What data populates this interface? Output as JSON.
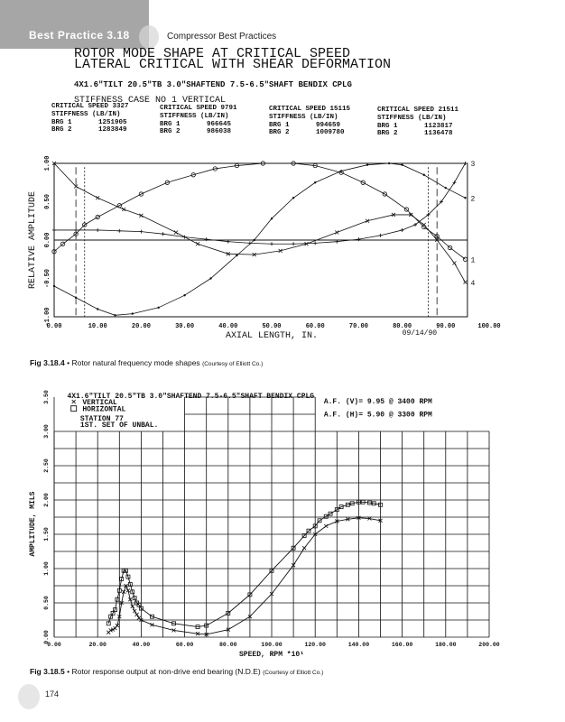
{
  "header": {
    "section": "Best Practice 3.18",
    "book": "Compressor Best Practices"
  },
  "fig1": {
    "title1": "ROTOR MODE SHAPE AT CRITICAL SPEED",
    "title2": "LATERAL CRITICAL WITH SHEAR DEFORMATION",
    "subtitle": "4X1.6\"TILT 20.5\"TB 3.0\"SHAFTEND 7.5-6.5\"SHAFT BENDIX CPLG",
    "case": "STIFFNESS CASE NO  1 VERTICAL",
    "columns": [
      {
        "speed": "CRITICAL SPEED 3327",
        "stiff": "STIFFNESS (LB/IN)",
        "b1l": "BRG 1",
        "b1": "1251905",
        "b2l": "BRG 2",
        "b2": "1283849"
      },
      {
        "speed": "CRITICAL SPEED 9791",
        "stiff": "STIFFNESS (LB/IN)",
        "b1l": "BRG 1",
        "b1": "966645",
        "b2l": "BRG 2",
        "b2": "986038"
      },
      {
        "speed": "CRITICAL SPEED 15115",
        "stiff": "STIFFNESS (LB/IN)",
        "b1l": "BRG 1",
        "b1": "994659",
        "b2l": "BRG 2",
        "b2": "1009780"
      },
      {
        "speed": "CRITICAL SPEED 21511",
        "stiff": "STIFFNESS (LB/IN)",
        "b1l": "BRG 1",
        "b1": "1123817",
        "b2l": "BRG 2",
        "b2": "1136478"
      }
    ],
    "date": "09/14/90",
    "caption_num": "Fig 3.18.4",
    "caption": "Rotor natural frequency mode shapes",
    "caption_credit": "(Courtesy of Elliott Co.)"
  },
  "fig2": {
    "title": "4X1.6\"TILT 20.5\"TB 3.0\"SHAFTEND 7.5-6.5\"SHAFT BENDIX CPLG",
    "station1": "STATION 77",
    "station2": "1ST. SET OF UNBAL.",
    "af_v": "A.F.  (V)=  9.95   @ 3400   RPM",
    "af_h": "A.F.  (H)=  5.90   @ 3300   RPM",
    "caption_num": "Fig 3.18.5",
    "caption": "Rotor response output at non-drive end bearing (N.D.E)",
    "caption_credit": "(Courtesy of Elliott Co.)"
  },
  "page_number": "174",
  "chart_data": [
    {
      "type": "line",
      "xlabel": "AXIAL LENGTH, IN.",
      "ylabel": "RELATIVE AMPLITUDE",
      "xlim": [
        0,
        100
      ],
      "ylim": [
        -1,
        1
      ],
      "xticks": [
        "0.00",
        "10.00",
        "20.00",
        "30.00",
        "40.00",
        "50.00",
        "60.00",
        "70.00",
        "80.00",
        "90.00",
        "100.00"
      ],
      "yticks": [
        "-1.00",
        "-0.50",
        "0.00",
        "0.50",
        "1.00"
      ],
      "grid": false,
      "series": [
        {
          "name": "1",
          "marker": "circle",
          "x": [
            0,
            2,
            5,
            7,
            10,
            15,
            20,
            26,
            32,
            37,
            42,
            48,
            55,
            60,
            66,
            71,
            76,
            81,
            85,
            88,
            91,
            94.5
          ],
          "y": [
            -0.15,
            -0.05,
            0.08,
            0.2,
            0.3,
            0.45,
            0.6,
            0.75,
            0.85,
            0.93,
            0.97,
            1.0,
            1.0,
            0.97,
            0.88,
            0.75,
            0.6,
            0.4,
            0.17,
            0.05,
            -0.1,
            -0.25
          ]
        },
        {
          "name": "2",
          "marker": "dot",
          "x": [
            0,
            5,
            10,
            14,
            18,
            24,
            30,
            36,
            42,
            46,
            50,
            55,
            60,
            66,
            72,
            77,
            80,
            85,
            90,
            94.5
          ],
          "y": [
            -0.6,
            -0.75,
            -0.9,
            -0.98,
            -0.96,
            -0.88,
            -0.72,
            -0.5,
            -0.2,
            0.0,
            0.28,
            0.55,
            0.75,
            0.9,
            0.98,
            1.0,
            0.98,
            0.85,
            0.68,
            0.55
          ]
        },
        {
          "name": "3",
          "marker": "plus",
          "x": [
            0,
            5,
            10,
            15,
            20,
            25,
            30,
            35,
            40,
            45,
            50,
            55,
            60,
            65,
            70,
            75,
            80,
            83,
            86,
            89,
            92,
            94.5
          ],
          "y": [
            0.13,
            0.13,
            0.13,
            0.12,
            0.11,
            0.08,
            0.04,
            0.01,
            -0.02,
            -0.04,
            -0.05,
            -0.05,
            -0.04,
            -0.02,
            0.01,
            0.06,
            0.13,
            0.2,
            0.33,
            0.5,
            0.75,
            1.0
          ]
        },
        {
          "name": "4",
          "marker": "x",
          "x": [
            0,
            5,
            10,
            16,
            20,
            28,
            33,
            40,
            46,
            52,
            58,
            65,
            72,
            78,
            82,
            85,
            88,
            92,
            94.5
          ],
          "y": [
            1.0,
            0.7,
            0.55,
            0.4,
            0.32,
            0.1,
            -0.05,
            -0.18,
            -0.19,
            -0.14,
            -0.05,
            0.1,
            0.25,
            0.33,
            0.33,
            0.2,
            0.0,
            -0.3,
            -0.55
          ]
        }
      ]
    },
    {
      "type": "line",
      "xlabel": "SPEED, RPM     *10¹",
      "ylabel": "AMPLITUDE, MILS",
      "xlim": [
        0,
        200
      ],
      "ylim": [
        0,
        3.5
      ],
      "xticks": [
        "0.00",
        "20.00",
        "40.00",
        "60.00",
        "80.00",
        "100.00",
        "120.00",
        "140.00",
        "160.00",
        "180.00",
        "200.00"
      ],
      "yticks": [
        "0.00",
        "0.50",
        "1.00",
        "1.50",
        "2.00",
        "2.50",
        "3.00",
        "3.50"
      ],
      "grid": true,
      "series": [
        {
          "name": "VERTICAL",
          "marker": "x",
          "x": [
            25,
            26,
            27,
            28,
            29,
            30,
            31,
            32,
            33,
            34,
            35,
            36,
            37,
            38,
            39,
            40,
            45,
            55,
            66,
            70,
            80,
            90,
            100,
            110,
            115,
            120,
            125,
            130,
            135,
            140,
            145,
            150
          ],
          "y": [
            0.07,
            0.1,
            0.11,
            0.13,
            0.17,
            0.3,
            0.5,
            0.66,
            0.75,
            0.68,
            0.55,
            0.45,
            0.38,
            0.33,
            0.28,
            0.25,
            0.18,
            0.1,
            0.05,
            0.04,
            0.11,
            0.3,
            0.63,
            1.05,
            1.3,
            1.5,
            1.62,
            1.69,
            1.72,
            1.74,
            1.73,
            1.7
          ]
        },
        {
          "name": "HORIZONTAL",
          "marker": "square",
          "x": [
            25,
            26,
            27,
            28,
            29,
            30,
            31,
            32,
            33,
            34,
            35,
            36,
            37,
            38,
            39,
            40,
            45,
            55,
            66,
            70,
            80,
            90,
            100,
            110,
            115,
            117,
            120,
            122,
            125,
            127,
            130,
            132,
            135,
            137,
            140,
            142,
            145,
            147,
            150
          ],
          "y": [
            0.2,
            0.3,
            0.35,
            0.4,
            0.55,
            0.68,
            0.85,
            0.97,
            0.97,
            0.88,
            0.77,
            0.66,
            0.57,
            0.5,
            0.47,
            0.42,
            0.3,
            0.2,
            0.15,
            0.17,
            0.35,
            0.62,
            0.97,
            1.3,
            1.48,
            1.55,
            1.62,
            1.7,
            1.76,
            1.8,
            1.86,
            1.9,
            1.93,
            1.95,
            1.97,
            1.97,
            1.96,
            1.95,
            1.93
          ]
        }
      ]
    }
  ]
}
